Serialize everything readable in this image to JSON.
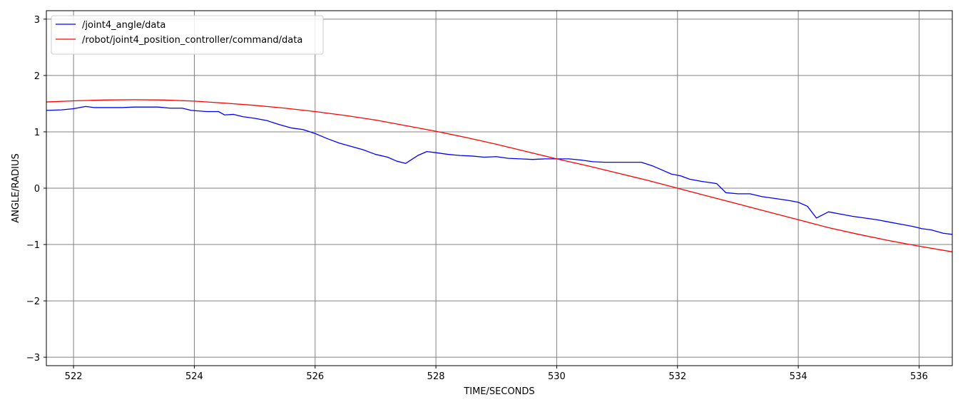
{
  "chart_data": {
    "type": "line",
    "title": "",
    "xlabel": "TIME/SECONDS",
    "ylabel": "ANGLE/RADIUS",
    "xlim": [
      521.55,
      536.55
    ],
    "ylim": [
      -3.15,
      3.15
    ],
    "xticks": [
      522,
      524,
      526,
      528,
      530,
      532,
      534,
      536
    ],
    "xtick_labels": [
      "522",
      "524",
      "526",
      "528",
      "530",
      "532",
      "534",
      "536"
    ],
    "yticks": [
      3,
      2,
      1,
      0,
      -1,
      -2,
      -3
    ],
    "ytick_labels": [
      "3",
      "2",
      "1",
      "0",
      "−1",
      "−2",
      "−3"
    ],
    "grid": true,
    "grid_color": "#808080",
    "legend_position": "top-left",
    "series": [
      {
        "name": "/joint4_angle/data",
        "color": "#0000ff",
        "x": [
          521.55,
          521.8,
          522.0,
          522.2,
          522.35,
          522.6,
          522.8,
          523.0,
          523.2,
          523.4,
          523.6,
          523.8,
          523.95,
          524.2,
          524.4,
          524.5,
          524.65,
          524.8,
          525.0,
          525.2,
          525.4,
          525.6,
          525.8,
          526.0,
          526.2,
          526.4,
          526.6,
          526.8,
          527.0,
          527.2,
          527.35,
          527.5,
          527.7,
          527.85,
          528.0,
          528.2,
          528.4,
          528.6,
          528.8,
          529.0,
          529.2,
          529.4,
          529.6,
          529.8,
          530.0,
          530.2,
          530.4,
          530.6,
          530.8,
          531.0,
          531.2,
          531.4,
          531.6,
          531.75,
          531.9,
          532.05,
          532.2,
          532.4,
          532.6,
          532.65,
          532.8,
          533.0,
          533.2,
          533.4,
          533.6,
          533.85,
          534.0,
          534.15,
          534.3,
          534.5,
          534.7,
          534.9,
          535.1,
          535.3,
          535.5,
          535.7,
          535.9,
          536.05,
          536.2,
          536.4,
          536.55
        ],
        "y": [
          1.38,
          1.39,
          1.41,
          1.45,
          1.43,
          1.43,
          1.43,
          1.44,
          1.44,
          1.44,
          1.42,
          1.42,
          1.38,
          1.36,
          1.36,
          1.3,
          1.31,
          1.27,
          1.24,
          1.2,
          1.13,
          1.07,
          1.04,
          0.97,
          0.88,
          0.8,
          0.74,
          0.68,
          0.6,
          0.55,
          0.48,
          0.44,
          0.58,
          0.65,
          0.63,
          0.6,
          0.58,
          0.57,
          0.55,
          0.56,
          0.53,
          0.52,
          0.51,
          0.52,
          0.52,
          0.52,
          0.5,
          0.47,
          0.46,
          0.46,
          0.46,
          0.46,
          0.39,
          0.32,
          0.25,
          0.22,
          0.16,
          0.12,
          0.09,
          0.08,
          -0.08,
          -0.1,
          -0.1,
          -0.15,
          -0.18,
          -0.22,
          -0.25,
          -0.32,
          -0.53,
          -0.42,
          -0.46,
          -0.5,
          -0.53,
          -0.56,
          -0.6,
          -0.64,
          -0.68,
          -0.72,
          -0.74,
          -0.8,
          -0.82
        ]
      },
      {
        "name": "/robot/joint4_position_controller/command/data",
        "color": "#ff0000",
        "x": [
          521.55,
          522.0,
          522.5,
          523.0,
          523.5,
          524.0,
          524.5,
          525.0,
          525.5,
          526.0,
          526.5,
          527.0,
          527.5,
          528.0,
          528.5,
          529.0,
          529.5,
          530.0,
          530.5,
          531.0,
          531.5,
          532.0,
          532.5,
          533.0,
          533.5,
          534.0,
          534.5,
          535.0,
          535.5,
          536.0,
          536.55
        ],
        "y": [
          1.53,
          1.55,
          1.565,
          1.57,
          1.565,
          1.545,
          1.51,
          1.47,
          1.42,
          1.36,
          1.29,
          1.21,
          1.11,
          1.01,
          0.9,
          0.78,
          0.65,
          0.52,
          0.4,
          0.27,
          0.14,
          0.0,
          -0.14,
          -0.28,
          -0.42,
          -0.56,
          -0.7,
          -0.82,
          -0.93,
          -1.03,
          -1.13
        ]
      }
    ]
  }
}
